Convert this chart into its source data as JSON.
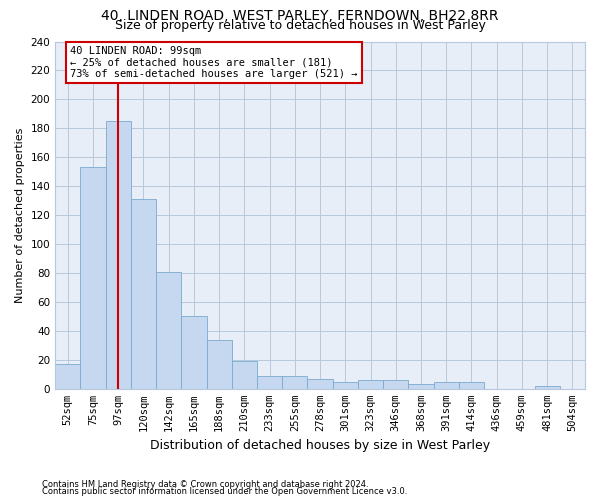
{
  "title1": "40, LINDEN ROAD, WEST PARLEY, FERNDOWN, BH22 8RR",
  "title2": "Size of property relative to detached houses in West Parley",
  "xlabel": "Distribution of detached houses by size in West Parley",
  "ylabel": "Number of detached properties",
  "footnote1": "Contains HM Land Registry data © Crown copyright and database right 2024.",
  "footnote2": "Contains public sector information licensed under the Open Government Licence v3.0.",
  "categories": [
    "52sqm",
    "75sqm",
    "97sqm",
    "120sqm",
    "142sqm",
    "165sqm",
    "188sqm",
    "210sqm",
    "233sqm",
    "255sqm",
    "278sqm",
    "301sqm",
    "323sqm",
    "346sqm",
    "368sqm",
    "391sqm",
    "414sqm",
    "436sqm",
    "459sqm",
    "481sqm",
    "504sqm"
  ],
  "values": [
    17,
    153,
    185,
    131,
    81,
    50,
    34,
    19,
    9,
    9,
    7,
    5,
    6,
    6,
    3,
    5,
    5,
    0,
    0,
    2,
    0
  ],
  "bar_color": "#c5d8f0",
  "bar_edge_color": "#7aaad0",
  "highlight_bar_index": 2,
  "vline_color": "#cc0000",
  "annotation_line1": "40 LINDEN ROAD: 99sqm",
  "annotation_line2": "← 25% of detached houses are smaller (181)",
  "annotation_line3": "73% of semi-detached houses are larger (521) →",
  "annotation_box_color": "#ffffff",
  "annotation_box_edge": "#cc0000",
  "ylim": [
    0,
    240
  ],
  "yticks": [
    0,
    20,
    40,
    60,
    80,
    100,
    120,
    140,
    160,
    180,
    200,
    220,
    240
  ],
  "background_color": "#e8eef8",
  "title1_fontsize": 10,
  "title2_fontsize": 9,
  "xlabel_fontsize": 9,
  "ylabel_fontsize": 8,
  "tick_fontsize": 7.5,
  "annotation_fontsize": 7.5
}
